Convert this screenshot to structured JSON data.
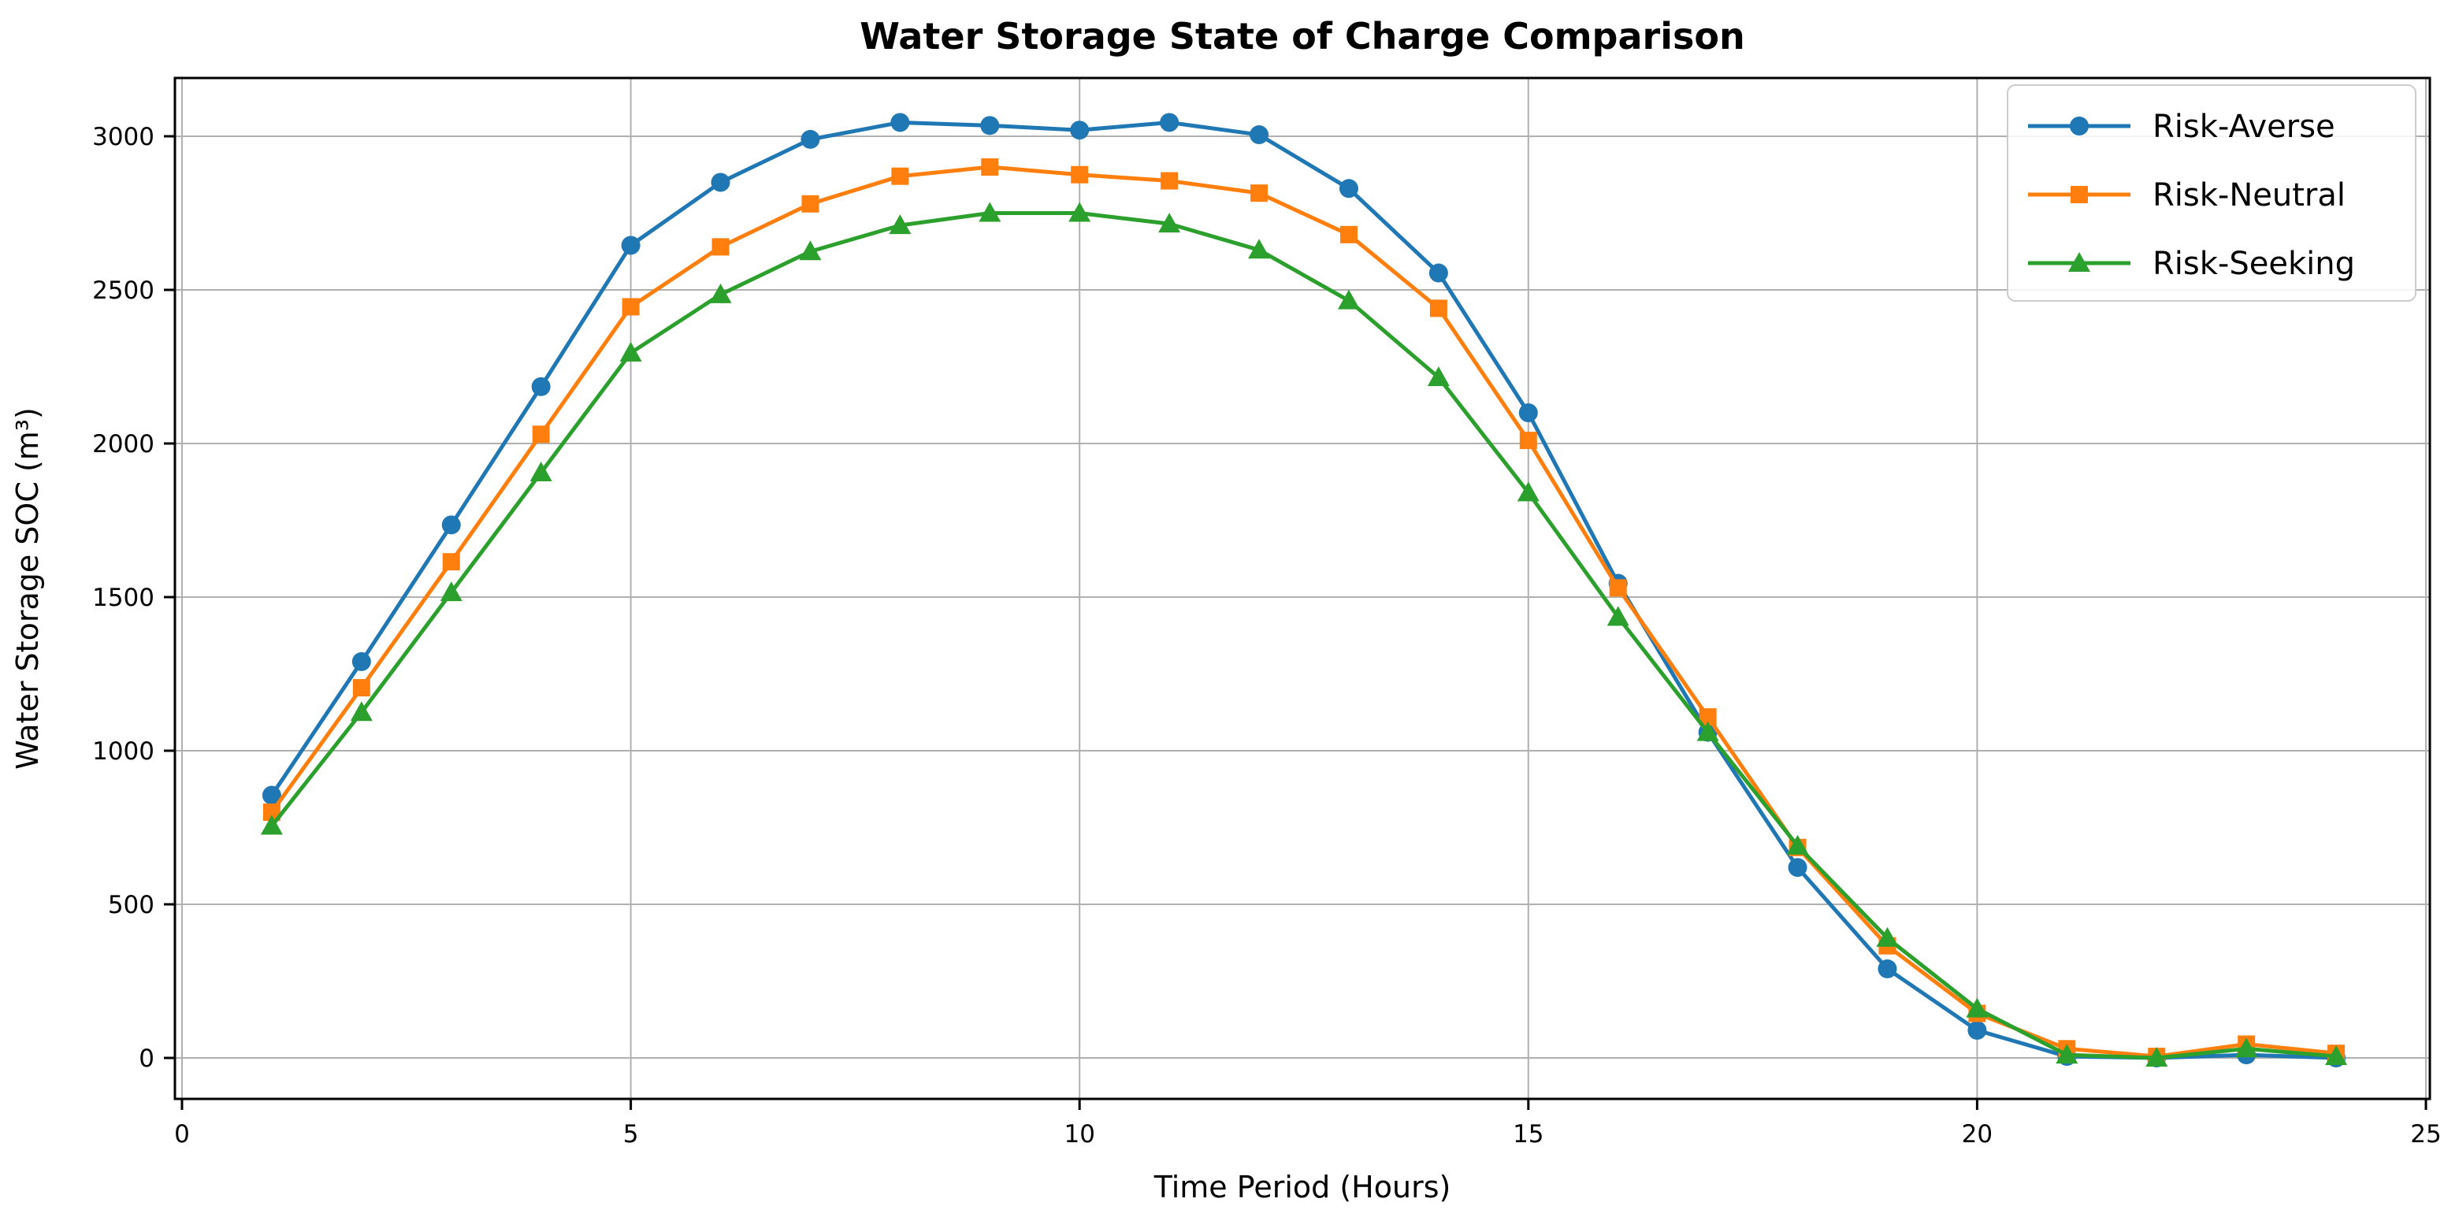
{
  "title": "Water Storage State of Charge Comparison",
  "chart_data": {
    "type": "line",
    "title": "Water Storage State of Charge Comparison",
    "xlabel": "Time Period (Hours)",
    "ylabel": "Water Storage SOC (m³)",
    "x": [
      1,
      2,
      3,
      4,
      5,
      6,
      7,
      8,
      9,
      10,
      11,
      12,
      13,
      14,
      15,
      16,
      17,
      18,
      19,
      20,
      21,
      22,
      23,
      24
    ],
    "series": [
      {
        "name": "Risk-Averse",
        "color": "#1f77b4",
        "marker": "circle",
        "values": [
          855,
          1290,
          1735,
          2185,
          2645,
          2850,
          2990,
          3045,
          3035,
          3020,
          3045,
          3005,
          2830,
          2555,
          2100,
          1545,
          1060,
          620,
          290,
          90,
          5,
          0,
          10,
          0
        ]
      },
      {
        "name": "Risk-Neutral",
        "color": "#ff7f0e",
        "marker": "square",
        "values": [
          800,
          1205,
          1615,
          2030,
          2445,
          2640,
          2780,
          2870,
          2900,
          2875,
          2855,
          2815,
          2680,
          2440,
          2010,
          1530,
          1110,
          685,
          365,
          145,
          30,
          5,
          45,
          15
        ]
      },
      {
        "name": "Risk-Seeking",
        "color": "#2ca02c",
        "marker": "triangle",
        "values": [
          755,
          1125,
          1515,
          1905,
          2295,
          2485,
          2625,
          2710,
          2750,
          2750,
          2715,
          2630,
          2465,
          2215,
          1840,
          1435,
          1060,
          690,
          390,
          160,
          10,
          0,
          30,
          5
        ]
      }
    ],
    "x_ticks": [
      0,
      5,
      10,
      15,
      20,
      25
    ],
    "y_ticks": [
      0,
      500,
      1000,
      1500,
      2000,
      2500,
      3000
    ],
    "xlim": [
      0,
      25
    ],
    "ylim": [
      -130,
      3190
    ],
    "grid": true,
    "legend_position": "upper right"
  },
  "colors": {
    "grid": "#b0b0b0",
    "spine": "#000000",
    "background": "#ffffff",
    "legend_border": "#cccccc"
  }
}
